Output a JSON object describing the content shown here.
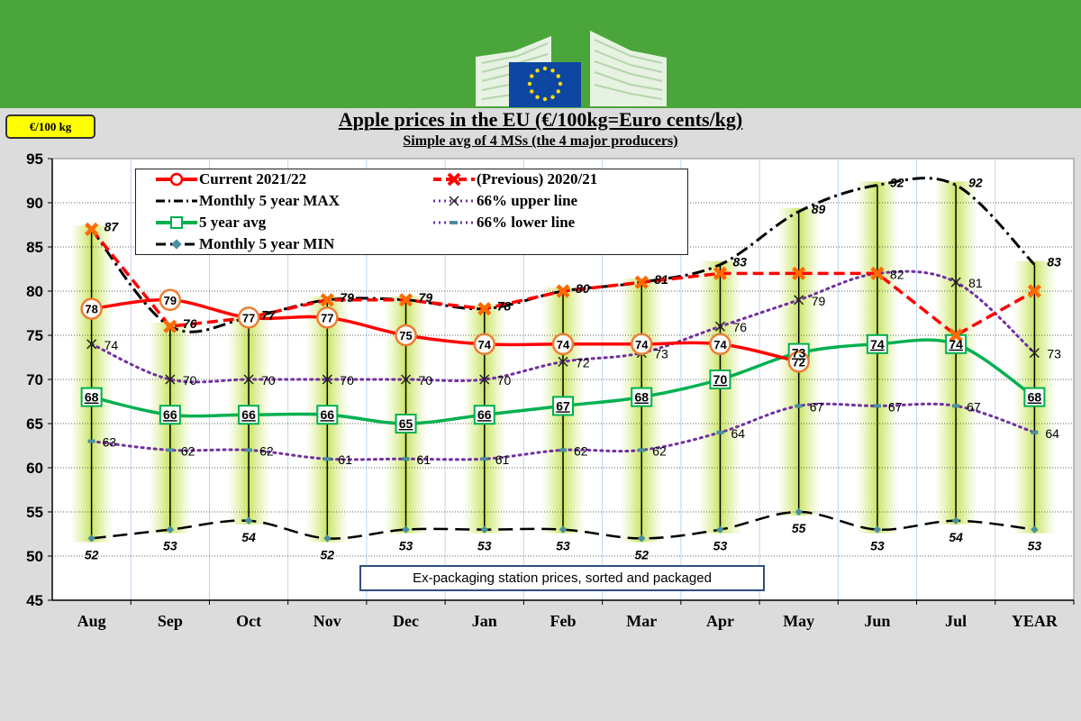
{
  "header": {
    "logo": "eu-commission-logo",
    "banner_color": "#4aa63b"
  },
  "unit_badge": "€/100 kg",
  "chart_data": {
    "type": "line",
    "title": "Apple prices in the EU (€/100kg=Euro cents/kg)",
    "subtitle": "Simple avg of 4 MSs (the 4 major producers)",
    "categories": [
      "Aug",
      "Sep",
      "Oct",
      "Nov",
      "Dec",
      "Jan",
      "Feb",
      "Mar",
      "Apr",
      "May",
      "Jun",
      "Jul",
      "YEAR"
    ],
    "ylim": [
      45,
      95
    ],
    "yticks": [
      45,
      50,
      55,
      60,
      65,
      70,
      75,
      80,
      85,
      90,
      95
    ],
    "grid": true,
    "legend_position": "top-left",
    "annotation": "Ex-packaging station prices, sorted and packaged",
    "series": [
      {
        "name": "Current 2021/22",
        "color": "#ff0000",
        "values": [
          78,
          79,
          77,
          77,
          75,
          74,
          74,
          74,
          74,
          72,
          null,
          null,
          null
        ],
        "labels": [
          "78",
          "79",
          "77",
          "77",
          "75",
          "74",
          "74",
          "74",
          "74",
          "72",
          "",
          "",
          ""
        ]
      },
      {
        "name": "(Previous) 2020/21",
        "color": "#ff0000",
        "values": [
          87,
          76,
          77,
          79,
          79,
          78,
          80,
          81,
          82,
          82,
          82,
          75,
          80
        ],
        "labels": [
          "",
          "",
          "",
          "",
          "",
          "",
          "",
          "",
          "",
          "",
          "",
          "",
          ""
        ]
      },
      {
        "name": "Monthly 5 year MAX",
        "color": "#000000",
        "values": [
          87,
          76,
          77,
          79,
          79,
          78,
          80,
          81,
          83,
          89,
          92,
          92,
          83
        ],
        "labels": [
          "87",
          "76",
          "77",
          "79",
          "79",
          "78",
          "80",
          "81",
          "83",
          "89",
          "92",
          "92",
          "83"
        ]
      },
      {
        "name": "66% upper line",
        "color": "#7030a0",
        "values": [
          74,
          70,
          70,
          70,
          70,
          70,
          72,
          73,
          76,
          79,
          82,
          81,
          73
        ],
        "labels": [
          "74",
          "70",
          "70",
          "70",
          "70",
          "70",
          "72",
          "73",
          "76",
          "79",
          "82",
          "81",
          "73"
        ]
      },
      {
        "name": "5 year avg",
        "color": "#00b050",
        "values": [
          68,
          66,
          66,
          66,
          65,
          66,
          67,
          68,
          70,
          73,
          74,
          74,
          68
        ],
        "labels": [
          "68",
          "66",
          "66",
          "66",
          "65",
          "66",
          "67",
          "68",
          "70",
          "73",
          "74",
          "74",
          "68"
        ]
      },
      {
        "name": "66% lower line",
        "color": "#7030a0",
        "values": [
          63,
          62,
          62,
          61,
          61,
          61,
          62,
          62,
          64,
          67,
          67,
          67,
          64
        ],
        "labels": [
          "63",
          "62",
          "62",
          "61",
          "61",
          "61",
          "62",
          "62",
          "64",
          "67",
          "67",
          "67",
          "64"
        ]
      },
      {
        "name": "Monthly 5 year MIN",
        "color": "#000000",
        "values": [
          52,
          53,
          54,
          52,
          53,
          53,
          53,
          52,
          53,
          55,
          53,
          54,
          53
        ],
        "labels": [
          "52",
          "53",
          "54",
          "52",
          "53",
          "53",
          "53",
          "52",
          "53",
          "55",
          "53",
          "54",
          "53"
        ]
      }
    ]
  }
}
